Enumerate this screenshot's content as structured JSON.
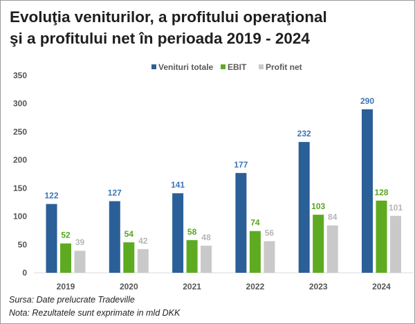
{
  "chart_data": {
    "type": "bar",
    "title_lines": [
      "Evoluţia veniturilor, a profitului operaţional",
      "şi a profitului net în perioada 2019 - 2024"
    ],
    "categories": [
      "2019",
      "2020",
      "2021",
      "2022",
      "2023",
      "2024"
    ],
    "series": [
      {
        "name": "Venituri totale",
        "values": [
          122,
          127,
          141,
          177,
          232,
          290
        ],
        "color": "#2b5f97",
        "label_color": "#3a76b6"
      },
      {
        "name": "EBIT",
        "values": [
          52,
          54,
          58,
          74,
          103,
          128
        ],
        "color": "#5eab22",
        "label_color": "#57a51c"
      },
      {
        "name": "Profit net",
        "values": [
          39,
          42,
          48,
          56,
          84,
          101
        ],
        "color": "#c9c9c9",
        "label_color": "#b5b5b5"
      }
    ],
    "yticks": [
      0,
      50,
      100,
      150,
      200,
      250,
      300,
      350
    ],
    "ylim": [
      0,
      350
    ],
    "grid": false,
    "legend_position": "top-right",
    "xlabel": "",
    "ylabel": ""
  },
  "notes": {
    "source": "Sursa: Date prelucrate Tradeville",
    "note": "Nota: Rezultatele sunt exprimate in mld DKK"
  }
}
